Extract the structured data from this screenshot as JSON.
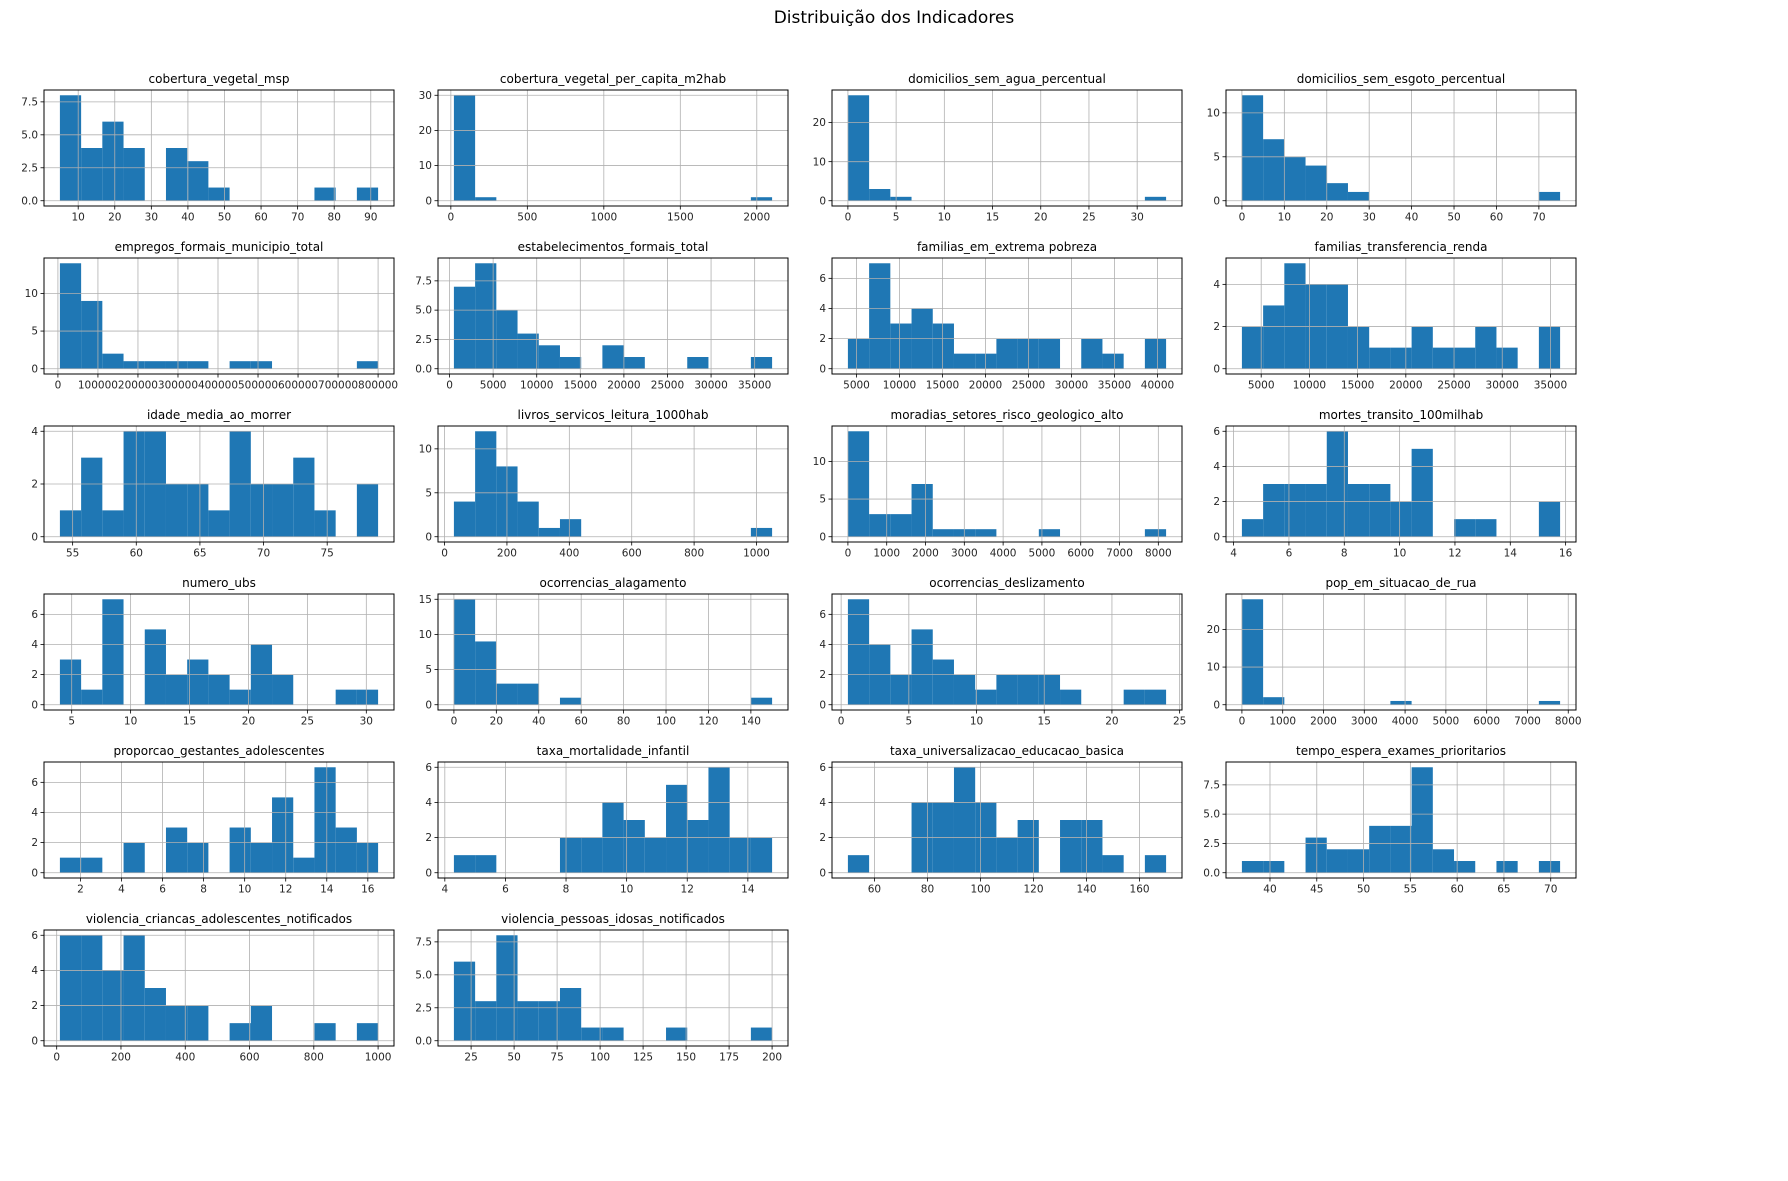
{
  "figure": {
    "title": "Distribuição dos Indicadores"
  },
  "style": {
    "background": "#ffffff",
    "bar_color": "#1f77b4",
    "grid_color": "#b0b0b0",
    "spine_color": "#000000",
    "text_color": "#262626"
  },
  "chart_data": [
    {
      "type": "histogram",
      "title": "cobertura_vegetal_msp",
      "bins": [
        8,
        4,
        6,
        4,
        0,
        4,
        3,
        1,
        0,
        0,
        0,
        0,
        1,
        0,
        1
      ],
      "bin_start": 5,
      "bin_end": 92,
      "xticks": [
        10,
        20,
        30,
        40,
        50,
        60,
        70,
        80,
        90
      ],
      "xtick_labels": [
        "10",
        "20",
        "30",
        "40",
        "50",
        "60",
        "70",
        "80",
        "90"
      ],
      "yticks": [
        0,
        2.5,
        5,
        7.5
      ],
      "ytick_labels": [
        "0.0",
        "2.5",
        "5.0",
        "7.5"
      ],
      "grid": true
    },
    {
      "type": "histogram",
      "title": "cobertura_vegetal_per_capita_m2hab",
      "bins": [
        30,
        1,
        0,
        0,
        0,
        0,
        0,
        0,
        0,
        0,
        0,
        0,
        0,
        0,
        1
      ],
      "bin_start": 20,
      "bin_end": 2100,
      "xticks": [
        0,
        500,
        1000,
        1500,
        2000
      ],
      "xtick_labels": [
        "0",
        "500",
        "1000",
        "1500",
        "2000"
      ],
      "yticks": [
        0,
        10,
        20,
        30
      ],
      "ytick_labels": [
        "0",
        "10",
        "20",
        "30"
      ],
      "grid": true
    },
    {
      "type": "histogram",
      "title": "domicilios_sem_agua_percentual",
      "bins": [
        27,
        3,
        1,
        0,
        0,
        0,
        0,
        0,
        0,
        0,
        0,
        0,
        0,
        0,
        1
      ],
      "bin_start": 0,
      "bin_end": 33,
      "xticks": [
        0,
        5,
        10,
        15,
        20,
        25,
        30
      ],
      "xtick_labels": [
        "0",
        "5",
        "10",
        "15",
        "20",
        "25",
        "30"
      ],
      "yticks": [
        0,
        10,
        20
      ],
      "ytick_labels": [
        "0",
        "10",
        "20"
      ],
      "grid": true
    },
    {
      "type": "histogram",
      "title": "domicilios_sem_esgoto_percentual",
      "bins": [
        12,
        7,
        5,
        4,
        2,
        1,
        0,
        0,
        0,
        0,
        0,
        0,
        0,
        0,
        1
      ],
      "bin_start": 0,
      "bin_end": 75,
      "xticks": [
        0,
        10,
        20,
        30,
        40,
        50,
        60,
        70
      ],
      "xtick_labels": [
        "0",
        "10",
        "20",
        "30",
        "40",
        "50",
        "60",
        "70"
      ],
      "yticks": [
        0,
        5,
        10
      ],
      "ytick_labels": [
        "0",
        "5",
        "10"
      ],
      "grid": true
    },
    {
      "type": "histogram",
      "title": "empregos_formais_municipio_total",
      "bins": [
        14,
        9,
        2,
        1,
        1,
        1,
        1,
        0,
        1,
        1,
        0,
        0,
        0,
        0,
        1
      ],
      "bin_start": 5000,
      "bin_end": 800000,
      "xticks": [
        0,
        100000,
        200000,
        300000,
        400000,
        500000,
        600000,
        700000,
        800000
      ],
      "xtick_labels": [
        "0",
        "100000",
        "200000",
        "300000",
        "400000",
        "500000",
        "600000",
        "700000",
        "800000"
      ],
      "yticks": [
        0,
        5,
        10
      ],
      "ytick_labels": [
        "0",
        "5",
        "10"
      ],
      "grid": true
    },
    {
      "type": "histogram",
      "title": "estabelecimentos_formais_total",
      "bins": [
        7,
        9,
        5,
        3,
        2,
        1,
        0,
        2,
        1,
        0,
        0,
        1,
        0,
        0,
        1
      ],
      "bin_start": 500,
      "bin_end": 37000,
      "xticks": [
        0,
        5000,
        10000,
        15000,
        20000,
        25000,
        30000,
        35000
      ],
      "xtick_labels": [
        "0",
        "5000",
        "10000",
        "15000",
        "20000",
        "25000",
        "30000",
        "35000"
      ],
      "yticks": [
        0,
        2.5,
        5,
        7.5
      ],
      "ytick_labels": [
        "0.0",
        "2.5",
        "5.0",
        "7.5"
      ],
      "grid": true
    },
    {
      "type": "histogram",
      "title": "familias_em_extrema pobreza",
      "bins": [
        2,
        7,
        3,
        4,
        3,
        1,
        1,
        2,
        2,
        2,
        0,
        2,
        1,
        0,
        2
      ],
      "bin_start": 4000,
      "bin_end": 41000,
      "xticks": [
        5000,
        10000,
        15000,
        20000,
        25000,
        30000,
        35000,
        40000
      ],
      "xtick_labels": [
        "5000",
        "10000",
        "15000",
        "20000",
        "25000",
        "30000",
        "35000",
        "40000"
      ],
      "yticks": [
        0,
        2,
        4,
        6
      ],
      "ytick_labels": [
        "0",
        "2",
        "4",
        "6"
      ],
      "grid": true
    },
    {
      "type": "histogram",
      "title": "familias_transferencia_renda",
      "bins": [
        2,
        3,
        5,
        4,
        4,
        2,
        1,
        1,
        2,
        1,
        1,
        2,
        1,
        0,
        2
      ],
      "bin_start": 3000,
      "bin_end": 36000,
      "xticks": [
        5000,
        10000,
        15000,
        20000,
        25000,
        30000,
        35000
      ],
      "xtick_labels": [
        "5000",
        "10000",
        "15000",
        "20000",
        "25000",
        "30000",
        "35000"
      ],
      "yticks": [
        0,
        2,
        4
      ],
      "ytick_labels": [
        "0",
        "2",
        "4"
      ],
      "grid": true
    },
    {
      "type": "histogram",
      "title": "idade_media_ao_morrer",
      "bins": [
        1,
        3,
        1,
        4,
        4,
        2,
        2,
        1,
        4,
        2,
        2,
        3,
        1,
        0,
        2
      ],
      "bin_start": 54,
      "bin_end": 79,
      "xticks": [
        55,
        60,
        65,
        70,
        75
      ],
      "xtick_labels": [
        "55",
        "60",
        "65",
        "70",
        "75"
      ],
      "yticks": [
        0,
        2,
        4
      ],
      "ytick_labels": [
        "0",
        "2",
        "4"
      ],
      "grid": true
    },
    {
      "type": "histogram",
      "title": "livros_servicos_leitura_1000hab",
      "bins": [
        4,
        12,
        8,
        4,
        1,
        2,
        0,
        0,
        0,
        0,
        0,
        0,
        0,
        0,
        1
      ],
      "bin_start": 30,
      "bin_end": 1050,
      "xticks": [
        0,
        200,
        400,
        600,
        800,
        1000
      ],
      "xtick_labels": [
        "0",
        "200",
        "400",
        "600",
        "800",
        "1000"
      ],
      "yticks": [
        0,
        5,
        10
      ],
      "ytick_labels": [
        "0",
        "5",
        "10"
      ],
      "grid": true
    },
    {
      "type": "histogram",
      "title": "moradias_setores_risco_geologico_alto",
      "bins": [
        14,
        3,
        3,
        7,
        1,
        1,
        1,
        0,
        0,
        1,
        0,
        0,
        0,
        0,
        1
      ],
      "bin_start": 0,
      "bin_end": 8200,
      "xticks": [
        0,
        1000,
        2000,
        3000,
        4000,
        5000,
        6000,
        7000,
        8000
      ],
      "xtick_labels": [
        "0",
        "1000",
        "2000",
        "3000",
        "4000",
        "5000",
        "6000",
        "7000",
        "8000"
      ],
      "yticks": [
        0,
        5,
        10
      ],
      "ytick_labels": [
        "0",
        "5",
        "10"
      ],
      "grid": true
    },
    {
      "type": "histogram",
      "title": "mortes_transito_100milhab",
      "bins": [
        1,
        3,
        3,
        3,
        6,
        3,
        3,
        2,
        5,
        0,
        1,
        1,
        0,
        0,
        2
      ],
      "bin_start": 4.3,
      "bin_end": 15.8,
      "xticks": [
        4,
        6,
        8,
        10,
        12,
        14,
        16
      ],
      "xtick_labels": [
        "4",
        "6",
        "8",
        "10",
        "12",
        "14",
        "16"
      ],
      "yticks": [
        0,
        2,
        4,
        6
      ],
      "ytick_labels": [
        "0",
        "2",
        "4",
        "6"
      ],
      "grid": true
    },
    {
      "type": "histogram",
      "title": "numero_ubs",
      "bins": [
        3,
        1,
        7,
        0,
        5,
        2,
        3,
        2,
        1,
        4,
        2,
        0,
        0,
        1,
        1
      ],
      "bin_start": 4,
      "bin_end": 31,
      "xticks": [
        5,
        10,
        15,
        20,
        25,
        30
      ],
      "xtick_labels": [
        "5",
        "10",
        "15",
        "20",
        "25",
        "30"
      ],
      "yticks": [
        0,
        2,
        4,
        6
      ],
      "ytick_labels": [
        "0",
        "2",
        "4",
        "6"
      ],
      "grid": true
    },
    {
      "type": "histogram",
      "title": "ocorrencias_alagamento",
      "bins": [
        15,
        9,
        3,
        3,
        0,
        1,
        0,
        0,
        0,
        0,
        0,
        0,
        0,
        0,
        1
      ],
      "bin_start": 0,
      "bin_end": 150,
      "xticks": [
        0,
        20,
        40,
        60,
        80,
        100,
        120,
        140
      ],
      "xtick_labels": [
        "0",
        "20",
        "40",
        "60",
        "80",
        "100",
        "120",
        "140"
      ],
      "yticks": [
        0,
        5,
        10,
        15
      ],
      "ytick_labels": [
        "0",
        "5",
        "10",
        "15"
      ],
      "grid": true
    },
    {
      "type": "histogram",
      "title": "ocorrencias_deslizamento",
      "bins": [
        7,
        4,
        2,
        5,
        3,
        2,
        1,
        2,
        2,
        2,
        1,
        0,
        0,
        1,
        1
      ],
      "bin_start": 0.5,
      "bin_end": 24,
      "xticks": [
        0,
        5,
        10,
        15,
        20,
        25
      ],
      "xtick_labels": [
        "0",
        "5",
        "10",
        "15",
        "20",
        "25"
      ],
      "yticks": [
        0,
        2,
        4,
        6
      ],
      "ytick_labels": [
        "0",
        "2",
        "4",
        "6"
      ],
      "grid": true
    },
    {
      "type": "histogram",
      "title": "pop_em_situacao_de_rua",
      "bins": [
        28,
        2,
        0,
        0,
        0,
        0,
        0,
        1,
        0,
        0,
        0,
        0,
        0,
        0,
        1
      ],
      "bin_start": 0,
      "bin_end": 7800,
      "xticks": [
        0,
        1000,
        2000,
        3000,
        4000,
        5000,
        6000,
        7000,
        8000
      ],
      "xtick_labels": [
        "0",
        "1000",
        "2000",
        "3000",
        "4000",
        "5000",
        "6000",
        "7000",
        "8000"
      ],
      "yticks": [
        0,
        10,
        20
      ],
      "ytick_labels": [
        "0",
        "10",
        "20"
      ],
      "grid": true
    },
    {
      "type": "histogram",
      "title": "proporcao_gestantes_adolescentes",
      "bins": [
        1,
        1,
        0,
        2,
        0,
        3,
        2,
        0,
        3,
        2,
        5,
        1,
        7,
        3,
        2
      ],
      "bin_start": 1,
      "bin_end": 16.5,
      "xticks": [
        2,
        4,
        6,
        8,
        10,
        12,
        14,
        16
      ],
      "xtick_labels": [
        "2",
        "4",
        "6",
        "8",
        "10",
        "12",
        "14",
        "16"
      ],
      "yticks": [
        0,
        2,
        4,
        6
      ],
      "ytick_labels": [
        "0",
        "2",
        "4",
        "6"
      ],
      "grid": true
    },
    {
      "type": "histogram",
      "title": "taxa_mortalidade_infantil",
      "bins": [
        1,
        1,
        0,
        0,
        0,
        2,
        2,
        4,
        3,
        2,
        5,
        3,
        6,
        2,
        2
      ],
      "bin_start": 4.3,
      "bin_end": 14.8,
      "xticks": [
        4,
        6,
        8,
        10,
        12,
        14
      ],
      "xtick_labels": [
        "4",
        "6",
        "8",
        "10",
        "12",
        "14"
      ],
      "yticks": [
        0,
        2,
        4,
        6
      ],
      "ytick_labels": [
        "0",
        "2",
        "4",
        "6"
      ],
      "grid": true
    },
    {
      "type": "histogram",
      "title": "taxa_universalizacao_educacao_basica",
      "bins": [
        1,
        0,
        0,
        4,
        4,
        6,
        4,
        2,
        3,
        0,
        3,
        3,
        1,
        0,
        1
      ],
      "bin_start": 50,
      "bin_end": 170,
      "xticks": [
        60,
        80,
        100,
        120,
        140,
        160
      ],
      "xtick_labels": [
        "60",
        "80",
        "100",
        "120",
        "140",
        "160"
      ],
      "yticks": [
        0,
        2,
        4,
        6
      ],
      "ytick_labels": [
        "0",
        "2",
        "4",
        "6"
      ],
      "grid": true
    },
    {
      "type": "histogram",
      "title": "tempo_espera_exames_prioritarios",
      "bins": [
        1,
        1,
        0,
        3,
        2,
        2,
        4,
        4,
        9,
        2,
        1,
        0,
        1,
        0,
        1
      ],
      "bin_start": 37,
      "bin_end": 71,
      "xticks": [
        40,
        45,
        50,
        55,
        60,
        65,
        70
      ],
      "xtick_labels": [
        "40",
        "45",
        "50",
        "55",
        "60",
        "65",
        "70"
      ],
      "yticks": [
        0,
        2.5,
        5,
        7.5
      ],
      "ytick_labels": [
        "0.0",
        "2.5",
        "5.0",
        "7.5"
      ],
      "grid": true
    },
    {
      "type": "histogram",
      "title": "violencia_criancas_adolescentes_notificados",
      "bins": [
        6,
        6,
        4,
        6,
        3,
        2,
        2,
        0,
        1,
        2,
        0,
        0,
        1,
        0,
        1
      ],
      "bin_start": 10,
      "bin_end": 1000,
      "xticks": [
        0,
        200,
        400,
        600,
        800,
        1000
      ],
      "xtick_labels": [
        "0",
        "200",
        "400",
        "600",
        "800",
        "1000"
      ],
      "yticks": [
        0,
        2,
        4,
        6
      ],
      "ytick_labels": [
        "0",
        "2",
        "4",
        "6"
      ],
      "grid": true
    },
    {
      "type": "histogram",
      "title": "violencia_pessoas_idosas_notificados",
      "bins": [
        6,
        3,
        8,
        3,
        3,
        4,
        1,
        1,
        0,
        0,
        1,
        0,
        0,
        0,
        1
      ],
      "bin_start": 15,
      "bin_end": 200,
      "xticks": [
        25,
        50,
        75,
        100,
        125,
        150,
        175,
        200
      ],
      "xtick_labels": [
        "25",
        "50",
        "75",
        "100",
        "125",
        "150",
        "175",
        "200"
      ],
      "yticks": [
        0,
        2.5,
        5,
        7.5
      ],
      "ytick_labels": [
        "0.0",
        "2.5",
        "5.0",
        "7.5"
      ],
      "grid": true
    }
  ]
}
